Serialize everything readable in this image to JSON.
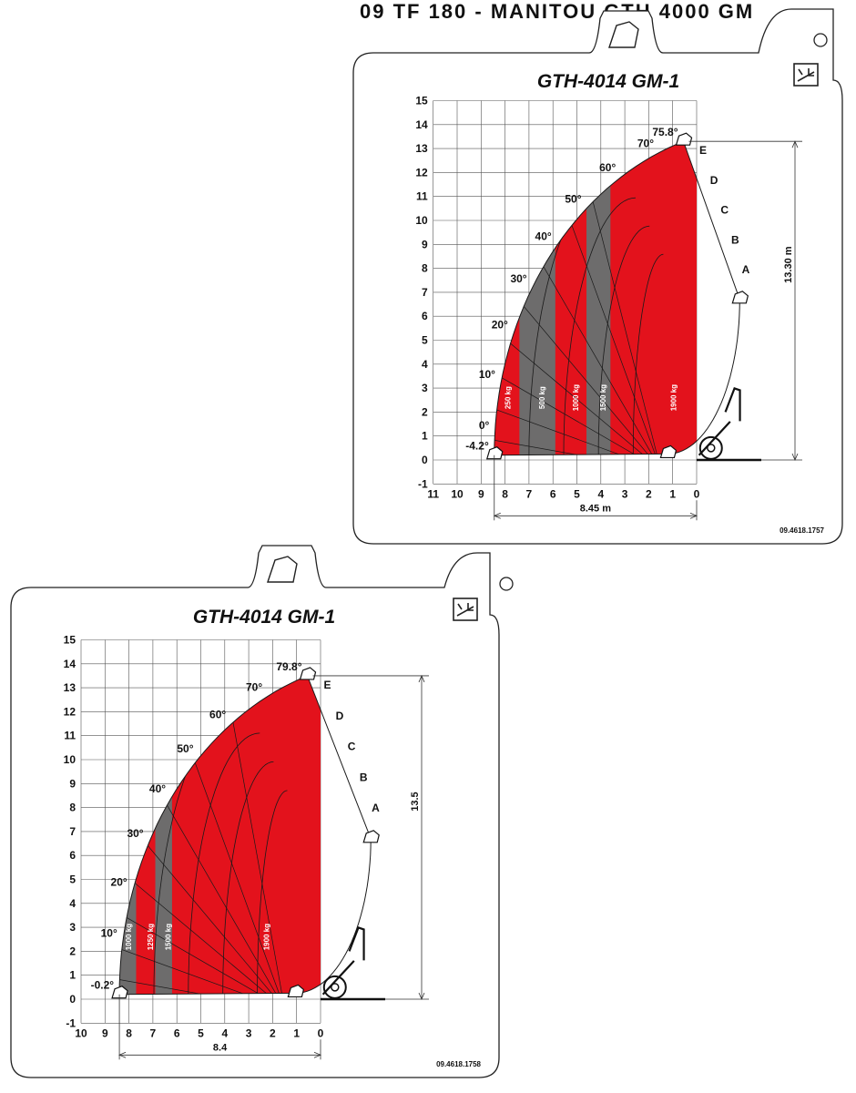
{
  "header_partial_text": "09 TF 180 - MANITOU GTH 4000 GM",
  "colors": {
    "red": "#e3121c",
    "grey": "#6d6c6c",
    "frame": "#222222",
    "grid": "#555555"
  },
  "chart_data": [
    {
      "type": "load_chart",
      "title": "GTH-4014 GM-1",
      "icon": "forks-on-stabilizers-icon",
      "x": {
        "ticks": [
          11,
          10,
          9,
          8,
          7,
          6,
          5,
          4,
          3,
          2,
          1,
          0
        ],
        "range": [
          11,
          0
        ]
      },
      "y": {
        "ticks": [
          15,
          14,
          13,
          12,
          11,
          10,
          9,
          8,
          7,
          6,
          5,
          4,
          3,
          2,
          1,
          0,
          -1
        ],
        "range": [
          -1,
          15
        ]
      },
      "grid": true,
      "boom_angles": [
        {
          "label": "-4.2°",
          "deg": -4.2
        },
        {
          "label": "0°",
          "deg": 0
        },
        {
          "label": "10°",
          "deg": 10
        },
        {
          "label": "20°",
          "deg": 20
        },
        {
          "label": "30°",
          "deg": 30
        },
        {
          "label": "40°",
          "deg": 40
        },
        {
          "label": "50°",
          "deg": 50
        },
        {
          "label": "60°",
          "deg": 60
        },
        {
          "label": "70°",
          "deg": 70
        },
        {
          "label": "75.8°",
          "deg": 75.8
        }
      ],
      "extension_zones": [
        "A",
        "B",
        "C",
        "D",
        "E"
      ],
      "capacity_zones": [
        {
          "label": "250 kg",
          "x_from": 8.45,
          "x_to": 7.1,
          "color": "red"
        },
        {
          "label": "500 kg",
          "x_from": 7.1,
          "x_to": 5.6,
          "color": "grey"
        },
        {
          "label": "1000 kg",
          "x_from": 5.6,
          "x_to": 4.3,
          "color": "red"
        },
        {
          "label": "1500 kg",
          "x_from": 4.3,
          "x_to": 3.3,
          "color": "grey"
        },
        {
          "label": "1900 kg",
          "x_from": 3.3,
          "x_to": 0,
          "color": "red"
        }
      ],
      "max_height_label": "13.30 m",
      "max_height": 13.3,
      "max_reach_label": "8.45 m",
      "max_reach": 8.45,
      "ref_code": "09.4618.1757"
    },
    {
      "type": "load_chart",
      "title": "GTH-4014 GM-1",
      "icon": "forks-without-stabilizers-icon",
      "x": {
        "ticks": [
          10,
          9,
          8,
          7,
          6,
          5,
          4,
          3,
          2,
          1,
          0
        ],
        "range": [
          10,
          0
        ]
      },
      "y": {
        "ticks": [
          15,
          14,
          13,
          12,
          11,
          10,
          9,
          8,
          7,
          6,
          5,
          4,
          3,
          2,
          1,
          0,
          -1
        ],
        "range": [
          -1,
          15
        ]
      },
      "grid": true,
      "boom_angles": [
        {
          "label": "-0.2°",
          "deg": -0.2
        },
        {
          "label": "10°",
          "deg": 10
        },
        {
          "label": "20°",
          "deg": 20
        },
        {
          "label": "30°",
          "deg": 30
        },
        {
          "label": "40°",
          "deg": 40
        },
        {
          "label": "50°",
          "deg": 50
        },
        {
          "label": "60°",
          "deg": 60
        },
        {
          "label": "70°",
          "deg": 70
        },
        {
          "label": "79.8°",
          "deg": 79.8
        }
      ],
      "extension_zones": [
        "A",
        "B",
        "C",
        "D",
        "E"
      ],
      "capacity_zones": [
        {
          "label": "1000 kg",
          "x_from": 8.4,
          "x_to": 7.4,
          "color": "grey"
        },
        {
          "label": "1250 kg",
          "x_from": 7.4,
          "x_to": 6.6,
          "color": "red"
        },
        {
          "label": "1500 kg",
          "x_from": 6.6,
          "x_to": 5.9,
          "color": "grey"
        },
        {
          "label": "1900 kg",
          "x_from": 5.9,
          "x_to": 0,
          "color": "red"
        }
      ],
      "max_height_label": "13.5",
      "max_height": 13.5,
      "max_reach_label": "8.4",
      "max_reach": 8.4,
      "ref_code": "09.4618.1758"
    }
  ]
}
